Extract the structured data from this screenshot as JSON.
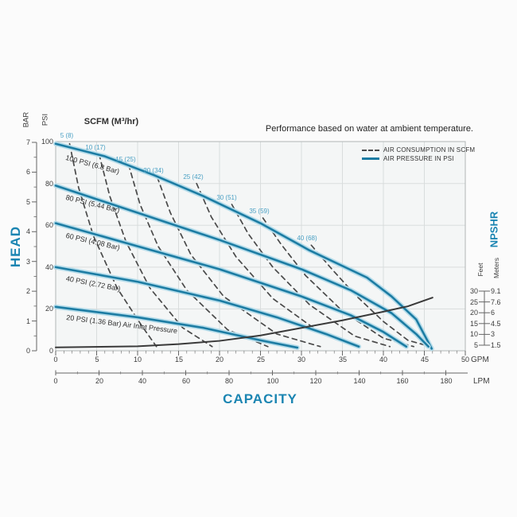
{
  "title": "Performance based on water at ambient temperature.",
  "scfm_axis_title": "SCFM (M³/hr)",
  "legend": {
    "air_consumption": "AIR CONSUMPTION IN SCFM",
    "air_pressure": "AIR PRESSURE IN PSI"
  },
  "axis_labels": {
    "head": "HEAD",
    "capacity": "CAPACITY",
    "bar": "BAR",
    "psi": "PSI",
    "npshr": "NPSHR",
    "feet": "Feet",
    "meters": "Meters",
    "gpm": "GPM",
    "lpm": "LPM"
  },
  "ticks": {
    "bar": [
      "7",
      "6",
      "5",
      "4",
      "3",
      "2",
      "1",
      "0"
    ],
    "psi": [
      "100",
      "80",
      "60",
      "40",
      "20",
      "0"
    ],
    "gpm": [
      "0",
      "5",
      "10",
      "15",
      "20",
      "25",
      "30",
      "35",
      "40",
      "45",
      "50"
    ],
    "lpm": [
      "0",
      "20",
      "40",
      "60",
      "80",
      "100",
      "120",
      "140",
      "160",
      "180"
    ],
    "feet": [
      "30",
      "25",
      "20",
      "15",
      "10",
      "5"
    ],
    "meters": [
      "9.1",
      "7.6",
      "6",
      "4.5",
      "3",
      "1.5"
    ]
  },
  "colors": {
    "curve_blue": "#1c7ca3",
    "curve_halo": "#b5dcea",
    "text_blue": "#1b85b2",
    "scfm_label_blue": "#4aa0c4",
    "dashed_gray": "#4a4a4a",
    "npshr_black": "#3a3a3a",
    "grid": "#d9dddd",
    "plot_bg": "#f4f6f6",
    "border": "#b0b6b6",
    "tick": "#666666"
  },
  "chart_data": {
    "type": "line",
    "title": "Performance based on water at ambient temperature.",
    "xlabel": "CAPACITY",
    "ylabel": "HEAD",
    "x_units": [
      "GPM",
      "LPM"
    ],
    "y_units": [
      "BAR",
      "PSI"
    ],
    "x_range_gpm": [
      0,
      50
    ],
    "x_range_lpm": [
      0,
      180
    ],
    "y_range_psi": [
      0,
      100
    ],
    "y_range_bar": [
      0,
      7
    ],
    "npshr_axis": {
      "feet": [
        5,
        30
      ],
      "meters": [
        1.5,
        9.1
      ]
    },
    "grid": true,
    "legend_position": "top-right-inside",
    "pressure_curves": [
      {
        "label": "100 PSI (6.8 Bar)",
        "psi": 100,
        "points": [
          [
            0,
            99
          ],
          [
            6,
            93
          ],
          [
            12,
            84
          ],
          [
            18,
            74
          ],
          [
            25,
            61
          ],
          [
            31,
            48
          ],
          [
            38,
            35
          ],
          [
            41,
            26
          ],
          [
            44,
            15
          ],
          [
            45.9,
            1
          ]
        ]
      },
      {
        "label": "80 PSI (5.44 Bar)",
        "psi": 80,
        "points": [
          [
            0,
            79
          ],
          [
            10,
            66
          ],
          [
            20,
            53
          ],
          [
            30,
            39
          ],
          [
            36,
            29
          ],
          [
            41,
            18
          ],
          [
            44,
            8
          ],
          [
            45.5,
            2
          ]
        ]
      },
      {
        "label": "60 PSI (4.08 Bar)",
        "psi": 60,
        "points": [
          [
            0,
            61
          ],
          [
            10,
            50
          ],
          [
            20,
            39
          ],
          [
            30,
            26
          ],
          [
            36,
            17
          ],
          [
            40,
            9
          ],
          [
            42.8,
            2
          ]
        ]
      },
      {
        "label": "40 PSI (2.72 Bar)",
        "psi": 40,
        "points": [
          [
            0,
            40
          ],
          [
            10,
            33
          ],
          [
            20,
            24
          ],
          [
            27,
            16
          ],
          [
            33,
            8
          ],
          [
            37,
            2
          ]
        ]
      },
      {
        "label": "20 PSI (1.36 Bar) Air Inlet Pressure",
        "psi": 20,
        "points": [
          [
            0,
            21
          ],
          [
            10,
            16
          ],
          [
            18,
            11
          ],
          [
            25,
            5
          ],
          [
            29.5,
            1.5
          ]
        ]
      }
    ],
    "consumption_curves": [
      {
        "label": "5 (8)",
        "scfm": 5,
        "m3hr": 8,
        "points": [
          [
            1.7,
            99
          ],
          [
            2.8,
            78
          ],
          [
            4.6,
            55
          ],
          [
            7.5,
            30
          ],
          [
            10.5,
            12
          ],
          [
            12.3,
            2
          ]
        ]
      },
      {
        "label": "10 (17)",
        "scfm": 10,
        "m3hr": 17,
        "points": [
          [
            5.3,
            94
          ],
          [
            6.6,
            74
          ],
          [
            8.6,
            52
          ],
          [
            11.5,
            30
          ],
          [
            15.5,
            11
          ],
          [
            19.1,
            2
          ]
        ]
      },
      {
        "label": "15 (25)",
        "scfm": 15,
        "m3hr": 25,
        "points": [
          [
            8.9,
            89
          ],
          [
            10.3,
            70
          ],
          [
            12.5,
            50
          ],
          [
            16,
            29
          ],
          [
            21,
            10
          ],
          [
            25.9,
            2
          ]
        ]
      },
      {
        "label": "20 (34)",
        "scfm": 20,
        "m3hr": 34,
        "points": [
          [
            12.4,
            83
          ],
          [
            14,
            66
          ],
          [
            16.5,
            46
          ],
          [
            20.5,
            26
          ],
          [
            27,
            8
          ],
          [
            32.3,
            2
          ]
        ]
      },
      {
        "label": "25 (42)",
        "scfm": 25,
        "m3hr": 42,
        "points": [
          [
            17.2,
            80
          ],
          [
            19,
            64
          ],
          [
            22,
            45
          ],
          [
            26.5,
            25
          ],
          [
            32.5,
            8
          ],
          [
            37.2,
            2
          ]
        ]
      },
      {
        "label": "30 (51)",
        "scfm": 30,
        "m3hr": 51,
        "points": [
          [
            21.5,
            70
          ],
          [
            23.5,
            56
          ],
          [
            26.5,
            40
          ],
          [
            31,
            22
          ],
          [
            36.5,
            7
          ],
          [
            40.8,
            2
          ]
        ]
      },
      {
        "label": "35 (59)",
        "scfm": 35,
        "m3hr": 59,
        "points": [
          [
            25.3,
            63.5
          ],
          [
            27.5,
            51
          ],
          [
            30.5,
            36
          ],
          [
            35,
            19
          ],
          [
            40,
            6
          ],
          [
            43.7,
            2
          ]
        ]
      },
      {
        "label": "40 (68)",
        "scfm": 40,
        "m3hr": 68,
        "points": [
          [
            31.2,
            50.5
          ],
          [
            33.5,
            40
          ],
          [
            36.5,
            27
          ],
          [
            40,
            14
          ],
          [
            43,
            5
          ],
          [
            45.3,
            2.5
          ]
        ]
      }
    ],
    "npshr_curve": {
      "name": "NPSHR",
      "points_gpm_feet": [
        [
          0,
          4
        ],
        [
          10,
          4.5
        ],
        [
          15,
          5.5
        ],
        [
          20,
          7
        ],
        [
          25,
          9.5
        ],
        [
          30,
          13
        ],
        [
          35,
          16.5
        ],
        [
          40,
          20.5
        ],
        [
          43,
          23
        ],
        [
          46,
          27
        ]
      ]
    }
  }
}
